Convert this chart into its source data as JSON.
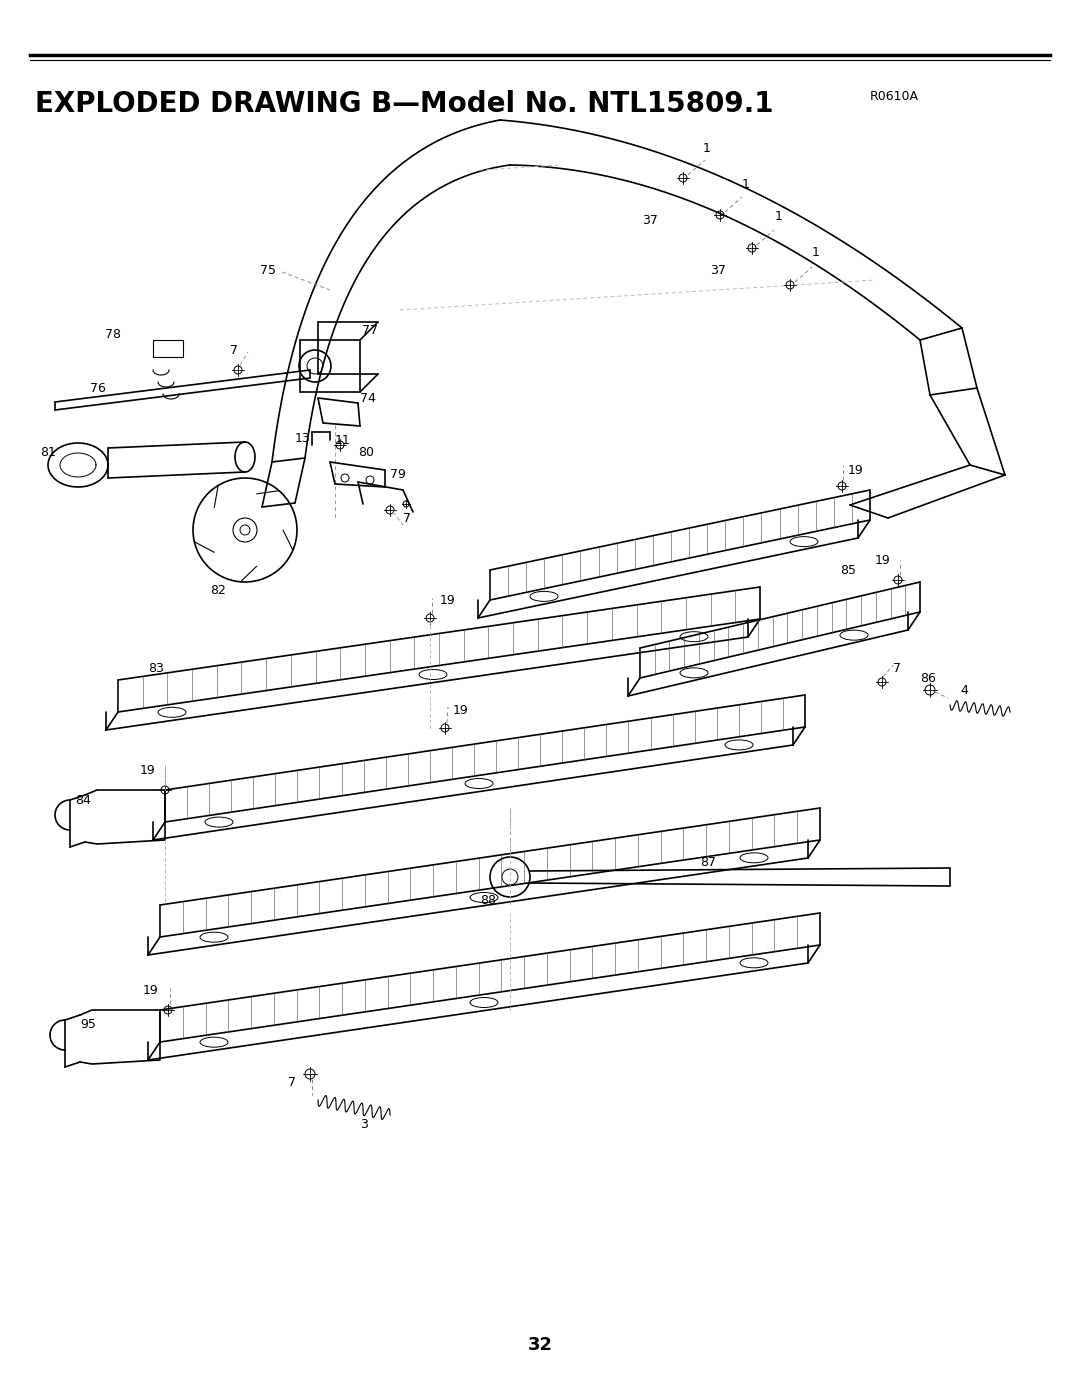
{
  "title": "EXPLODED DRAWING B—Model No. NTL15809.1",
  "title_code": "R0610A",
  "page_number": "32",
  "bg": "#ffffff",
  "lc": "#000000",
  "dc": "#aaaaaa",
  "figsize": [
    10.8,
    13.97
  ],
  "dpi": 100,
  "title_fs": 20,
  "label_fs": 9,
  "page_fs": 13
}
